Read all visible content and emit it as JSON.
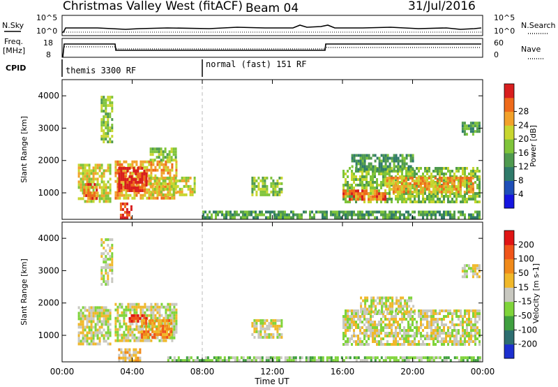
{
  "header": {
    "station": "Christmas Valley West (fitACF)",
    "beam": "Beam 04",
    "date": "31/Jul/2016"
  },
  "top_panels": {
    "nsky_label": "N.Sky",
    "nsky_ticks": [
      "10^5",
      "10^0"
    ],
    "nsearch_label": "N.Search",
    "nsearch_ticks": [
      "10^5",
      "10^0"
    ],
    "freq_label": "Freq.",
    "freq_unit": "[MHz]",
    "freq_ticks": [
      "18",
      "8"
    ],
    "nave_label": "Nave",
    "nave_ticks": [
      "60",
      "0"
    ],
    "cpid_label": "CPID",
    "cpid_modes": [
      {
        "label": "themis 3300 RF",
        "start": 0,
        "end": 8
      },
      {
        "label": "normal (fast) 151 RF",
        "start": 8,
        "end": 24
      }
    ]
  },
  "chart_data": [
    {
      "type": "heatmap",
      "title": "Power",
      "ylabel": "Slant Range [km]",
      "ylim": [
        180,
        4500
      ],
      "xlim": [
        0,
        24
      ],
      "yticks": [
        "1000",
        "2000",
        "3000",
        "4000"
      ],
      "colorbar": {
        "label": "Power [dB]",
        "ticks": [
          "4",
          "8",
          "12",
          "16",
          "20",
          "24",
          "28"
        ],
        "colors": [
          "#1515e0",
          "#1f4fb8",
          "#2f7a6a",
          "#4f9a4f",
          "#7fc43a",
          "#c8d62f",
          "#f2a12a",
          "#ee6a1a",
          "#d81e1e"
        ]
      },
      "regions": [
        {
          "t0": 0.9,
          "t1": 2.8,
          "r0": 700,
          "r1": 1900,
          "level": 5
        },
        {
          "t0": 1.2,
          "t1": 2.0,
          "r0": 850,
          "r1": 1300,
          "level": 7
        },
        {
          "t0": 2.2,
          "t1": 2.8,
          "r0": 2600,
          "r1": 4000,
          "level": 4
        },
        {
          "t0": 3.0,
          "t1": 6.5,
          "r0": 800,
          "r1": 2000,
          "level": 6
        },
        {
          "t0": 3.2,
          "t1": 4.8,
          "r0": 1100,
          "r1": 1800,
          "level": 8
        },
        {
          "t0": 3.3,
          "t1": 4.0,
          "r0": 250,
          "r1": 700,
          "level": 8
        },
        {
          "t0": 5.0,
          "t1": 7.6,
          "r0": 900,
          "r1": 1500,
          "level": 5
        },
        {
          "t0": 5.0,
          "t1": 6.5,
          "r0": 2000,
          "r1": 2400,
          "level": 4
        },
        {
          "t0": 10.8,
          "t1": 12.5,
          "r0": 900,
          "r1": 1500,
          "level": 4
        },
        {
          "t0": 16.0,
          "t1": 23.8,
          "r0": 700,
          "r1": 1800,
          "level": 4
        },
        {
          "t0": 16.0,
          "t1": 18.5,
          "r0": 800,
          "r1": 1100,
          "level": 7
        },
        {
          "t0": 18.5,
          "t1": 23.5,
          "r0": 1000,
          "r1": 1500,
          "level": 6
        },
        {
          "t0": 16.5,
          "t1": 20.0,
          "r0": 1700,
          "r1": 2200,
          "level": 3
        },
        {
          "t0": 22.8,
          "t1": 23.8,
          "r0": 2800,
          "r1": 3200,
          "level": 3
        },
        {
          "t0": 8.0,
          "t1": 23.8,
          "r0": 200,
          "r1": 450,
          "level": 3
        }
      ]
    },
    {
      "type": "heatmap",
      "title": "Velocity",
      "ylabel": "Slant Range [km]",
      "ylim": [
        180,
        4500
      ],
      "xlim": [
        0,
        24
      ],
      "yticks": [
        "1000",
        "2000",
        "3000",
        "4000"
      ],
      "xticks": [
        "00:00",
        "04:00",
        "08:00",
        "12:00",
        "16:00",
        "20:00",
        "00:00"
      ],
      "xlabel": "Time UT",
      "colorbar": {
        "label": "Velocity [m s-1]",
        "ticks": [
          "200",
          "100",
          "50",
          "15",
          "-15",
          "-50",
          "-100",
          "-200"
        ],
        "colors": [
          "#1c2fcf",
          "#2d6e70",
          "#3f9f3f",
          "#7fd43a",
          "#c8c8c0",
          "#f0b82a",
          "#f08a1a",
          "#f0551a",
          "#e01515"
        ]
      },
      "regions": [
        {
          "t0": 0.9,
          "t1": 2.8,
          "r0": 700,
          "r1": 1900,
          "level": 4
        },
        {
          "t0": 2.2,
          "t1": 2.8,
          "r0": 2600,
          "r1": 4000,
          "level": 4
        },
        {
          "t0": 3.0,
          "t1": 6.5,
          "r0": 800,
          "r1": 2000,
          "level": 4
        },
        {
          "t0": 3.8,
          "t1": 4.8,
          "r0": 1400,
          "r1": 1650,
          "level": 8
        },
        {
          "t0": 4.5,
          "t1": 6.2,
          "r0": 900,
          "r1": 1500,
          "level": 6
        },
        {
          "t0": 3.2,
          "t1": 4.5,
          "r0": 250,
          "r1": 600,
          "level": 5
        },
        {
          "t0": 10.8,
          "t1": 12.5,
          "r0": 900,
          "r1": 1500,
          "level": 4
        },
        {
          "t0": 16.0,
          "t1": 23.8,
          "r0": 700,
          "r1": 1800,
          "level": 4
        },
        {
          "t0": 17.0,
          "t1": 20.0,
          "r0": 1700,
          "r1": 2200,
          "level": 4
        },
        {
          "t0": 22.8,
          "t1": 23.8,
          "r0": 2800,
          "r1": 3200,
          "level": 4
        },
        {
          "t0": 6.0,
          "t1": 23.8,
          "r0": 200,
          "r1": 350,
          "level": 3
        }
      ]
    }
  ]
}
